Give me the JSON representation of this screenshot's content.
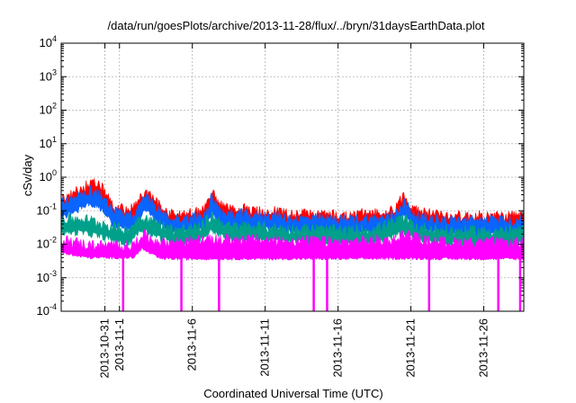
{
  "chart_data": {
    "type": "line",
    "title": "/data/run/goesPlots/archive/2013-11-28/flux/../bryn/31daysEarthData.plot",
    "xlabel": "Coordinated Universal Time (UTC)",
    "ylabel": "cSv/day",
    "y_scale": "log",
    "ylim": [
      0.0001,
      10000
    ],
    "y_ticks": [
      {
        "value": 0.0001,
        "base": "10",
        "exp": "-4"
      },
      {
        "value": 0.001,
        "base": "10",
        "exp": "-3"
      },
      {
        "value": 0.01,
        "base": "10",
        "exp": "-2"
      },
      {
        "value": 0.1,
        "base": "10",
        "exp": "-1"
      },
      {
        "value": 1,
        "base": "10",
        "exp": "0"
      },
      {
        "value": 10,
        "base": "10",
        "exp": "1"
      },
      {
        "value": 100,
        "base": "10",
        "exp": "2"
      },
      {
        "value": 1000,
        "base": "10",
        "exp": "3"
      },
      {
        "value": 10000,
        "base": "10",
        "exp": "4"
      }
    ],
    "xlim": [
      "2013-10-28T00:00",
      "2013-11-28T18:00"
    ],
    "x_ticks": [
      {
        "date": "2013-10-31",
        "label": "2013-10-31"
      },
      {
        "date": "2013-11-01",
        "label": "2013-11-1"
      },
      {
        "date": "2013-11-06",
        "label": "2013-11-6"
      },
      {
        "date": "2013-11-11",
        "label": "2013-11-11"
      },
      {
        "date": "2013-11-16",
        "label": "2013-11-16"
      },
      {
        "date": "2013-11-21",
        "label": "2013-11-21"
      },
      {
        "date": "2013-11-26",
        "label": "2013-11-26"
      }
    ],
    "grid": true,
    "legend": "none",
    "series": [
      {
        "color": "#ff0000",
        "points": [
          [
            "2013-10-28T00:00",
            0.2
          ],
          [
            "2013-10-28T18:00",
            0.25
          ],
          [
            "2013-10-29T12:00",
            0.45
          ],
          [
            "2013-10-30T00:00",
            0.55
          ],
          [
            "2013-10-30T12:00",
            0.5
          ],
          [
            "2013-10-31T00:00",
            0.35
          ],
          [
            "2013-10-31T12:00",
            0.12
          ],
          [
            "2013-11-01T00:00",
            0.1
          ],
          [
            "2013-11-01T18:00",
            0.09
          ],
          [
            "2013-11-02T06:00",
            0.15
          ],
          [
            "2013-11-02T18:00",
            0.32
          ],
          [
            "2013-11-03T06:00",
            0.22
          ],
          [
            "2013-11-03T18:00",
            0.12
          ],
          [
            "2013-11-04T12:00",
            0.07
          ],
          [
            "2013-11-05T12:00",
            0.07
          ],
          [
            "2013-11-06T12:00",
            0.08
          ],
          [
            "2013-11-07T00:00",
            0.12
          ],
          [
            "2013-11-07T08:00",
            0.35
          ],
          [
            "2013-11-07T18:00",
            0.15
          ],
          [
            "2013-11-08T12:00",
            0.09
          ],
          [
            "2013-11-09T12:00",
            0.1
          ],
          [
            "2013-11-10T12:00",
            0.08
          ],
          [
            "2013-11-11T12:00",
            0.09
          ],
          [
            "2013-11-12T12:00",
            0.07
          ],
          [
            "2013-11-13T12:00",
            0.07
          ],
          [
            "2013-11-14T12:00",
            0.07
          ],
          [
            "2013-11-15T12:00",
            0.07
          ],
          [
            "2013-11-16T12:00",
            0.06
          ],
          [
            "2013-11-17T12:00",
            0.07
          ],
          [
            "2013-11-18T12:00",
            0.07
          ],
          [
            "2013-11-19T12:00",
            0.08
          ],
          [
            "2013-11-20T00:00",
            0.11
          ],
          [
            "2013-11-20T12:00",
            0.26
          ],
          [
            "2013-11-21T00:00",
            0.13
          ],
          [
            "2013-11-21T12:00",
            0.08
          ],
          [
            "2013-11-22T12:00",
            0.07
          ],
          [
            "2013-11-23T12:00",
            0.06
          ],
          [
            "2013-11-24T12:00",
            0.06
          ],
          [
            "2013-11-25T12:00",
            0.06
          ],
          [
            "2013-11-26T12:00",
            0.06
          ],
          [
            "2013-11-27T12:00",
            0.06
          ],
          [
            "2013-11-28T12:00",
            0.06
          ]
        ]
      },
      {
        "color": "#0a64ff",
        "points": [
          [
            "2013-10-28T00:00",
            0.15
          ],
          [
            "2013-10-28T18:00",
            0.18
          ],
          [
            "2013-10-29T12:00",
            0.3
          ],
          [
            "2013-10-30T00:00",
            0.35
          ],
          [
            "2013-10-30T12:00",
            0.3
          ],
          [
            "2013-10-31T00:00",
            0.2
          ],
          [
            "2013-10-31T12:00",
            0.09
          ],
          [
            "2013-11-01T00:00",
            0.07
          ],
          [
            "2013-11-01T18:00",
            0.06
          ],
          [
            "2013-11-02T06:00",
            0.1
          ],
          [
            "2013-11-02T18:00",
            0.22
          ],
          [
            "2013-11-03T06:00",
            0.15
          ],
          [
            "2013-11-03T18:00",
            0.08
          ],
          [
            "2013-11-04T12:00",
            0.05
          ],
          [
            "2013-11-05T12:00",
            0.05
          ],
          [
            "2013-11-06T12:00",
            0.06
          ],
          [
            "2013-11-07T00:00",
            0.08
          ],
          [
            "2013-11-07T08:00",
            0.22
          ],
          [
            "2013-11-07T18:00",
            0.1
          ],
          [
            "2013-11-08T12:00",
            0.065
          ],
          [
            "2013-11-09T12:00",
            0.07
          ],
          [
            "2013-11-10T12:00",
            0.06
          ],
          [
            "2013-11-11T12:00",
            0.065
          ],
          [
            "2013-11-12T12:00",
            0.05
          ],
          [
            "2013-11-13T12:00",
            0.05
          ],
          [
            "2013-11-14T12:00",
            0.05
          ],
          [
            "2013-11-15T12:00",
            0.05
          ],
          [
            "2013-11-16T12:00",
            0.045
          ],
          [
            "2013-11-17T12:00",
            0.05
          ],
          [
            "2013-11-18T12:00",
            0.05
          ],
          [
            "2013-11-19T12:00",
            0.055
          ],
          [
            "2013-11-20T00:00",
            0.08
          ],
          [
            "2013-11-20T12:00",
            0.17
          ],
          [
            "2013-11-21T00:00",
            0.09
          ],
          [
            "2013-11-21T12:00",
            0.055
          ],
          [
            "2013-11-22T12:00",
            0.05
          ],
          [
            "2013-11-23T12:00",
            0.045
          ],
          [
            "2013-11-24T12:00",
            0.045
          ],
          [
            "2013-11-25T12:00",
            0.045
          ],
          [
            "2013-11-26T12:00",
            0.045
          ],
          [
            "2013-11-27T12:00",
            0.045
          ],
          [
            "2013-11-28T12:00",
            0.045
          ]
        ]
      },
      {
        "color": "#00a08a",
        "points": [
          [
            "2013-10-28T00:00",
            0.05
          ],
          [
            "2013-10-29T12:00",
            0.05
          ],
          [
            "2013-10-30T12:00",
            0.04
          ],
          [
            "2013-10-31T12:00",
            0.03
          ],
          [
            "2013-11-01T12:00",
            0.022
          ],
          [
            "2013-11-02T12:00",
            0.06
          ],
          [
            "2013-11-03T12:00",
            0.04
          ],
          [
            "2013-11-04T12:00",
            0.025
          ],
          [
            "2013-11-05T12:00",
            0.025
          ],
          [
            "2013-11-06T12:00",
            0.028
          ],
          [
            "2013-11-07T08:00",
            0.06
          ],
          [
            "2013-11-08T12:00",
            0.03
          ],
          [
            "2013-11-10T12:00",
            0.03
          ],
          [
            "2013-11-12T12:00",
            0.025
          ],
          [
            "2013-11-14T12:00",
            0.025
          ],
          [
            "2013-11-16T12:00",
            0.022
          ],
          [
            "2013-11-18T12:00",
            0.025
          ],
          [
            "2013-11-20T12:00",
            0.05
          ],
          [
            "2013-11-21T12:00",
            0.028
          ],
          [
            "2013-11-23T12:00",
            0.022
          ],
          [
            "2013-11-25T12:00",
            0.022
          ],
          [
            "2013-11-27T12:00",
            0.022
          ],
          [
            "2013-11-28T12:00",
            0.022
          ]
        ]
      },
      {
        "color": "#ff00ff",
        "points": [
          [
            "2013-10-28T00:00",
            0.012
          ],
          [
            "2013-10-29T00:00",
            0.01
          ],
          [
            "2013-10-30T00:00",
            0.008
          ],
          [
            "2013-10-31T00:00",
            0.008
          ],
          [
            "2013-11-01T00:00",
            0.008
          ],
          [
            "2013-11-02T00:00",
            0.008
          ],
          [
            "2013-11-02T12:00",
            0.018
          ],
          [
            "2013-11-03T06:00",
            0.012
          ],
          [
            "2013-11-04T00:00",
            0.01
          ],
          [
            "2013-11-06T00:00",
            0.011
          ],
          [
            "2013-11-08T00:00",
            0.012
          ],
          [
            "2013-11-10T00:00",
            0.012
          ],
          [
            "2013-11-12T00:00",
            0.011
          ],
          [
            "2013-11-14T00:00",
            0.011
          ],
          [
            "2013-11-16T00:00",
            0.01
          ],
          [
            "2013-11-18T00:00",
            0.011
          ],
          [
            "2013-11-20T00:00",
            0.012
          ],
          [
            "2013-11-20T12:00",
            0.018
          ],
          [
            "2013-11-22T00:00",
            0.011
          ],
          [
            "2013-11-24T00:00",
            0.01
          ],
          [
            "2013-11-26T00:00",
            0.01
          ],
          [
            "2013-11-28T12:00",
            0.01
          ]
        ],
        "lower_points": [
          [
            "2013-10-28T00:00",
            0.006
          ],
          [
            "2013-10-29T00:00",
            0.0045
          ],
          [
            "2013-10-30T00:00",
            0.004
          ],
          [
            "2013-10-31T00:00",
            0.004
          ],
          [
            "2013-11-01T00:00",
            0.004
          ],
          [
            "2013-11-02T00:00",
            0.004
          ],
          [
            "2013-11-02T12:00",
            0.0075
          ],
          [
            "2013-11-03T06:00",
            0.005
          ],
          [
            "2013-11-03T18:00",
            0.0038
          ],
          [
            "2013-11-05T00:00",
            0.0037
          ],
          [
            "2013-11-08T00:00",
            0.0037
          ],
          [
            "2013-11-12T00:00",
            0.0037
          ],
          [
            "2013-11-16T00:00",
            0.0037
          ],
          [
            "2013-11-20T00:00",
            0.0038
          ],
          [
            "2013-11-24T00:00",
            0.0037
          ],
          [
            "2013-11-28T12:00",
            0.0037
          ]
        ],
        "dropouts": [
          "2013-11-01T06:00",
          "2013-11-05T06:00",
          "2013-11-07T20:00",
          "2013-11-14T08:00",
          "2013-11-15T06:00",
          "2013-11-22T06:00",
          "2013-11-27T00:00",
          "2013-11-28T12:00"
        ]
      }
    ]
  }
}
